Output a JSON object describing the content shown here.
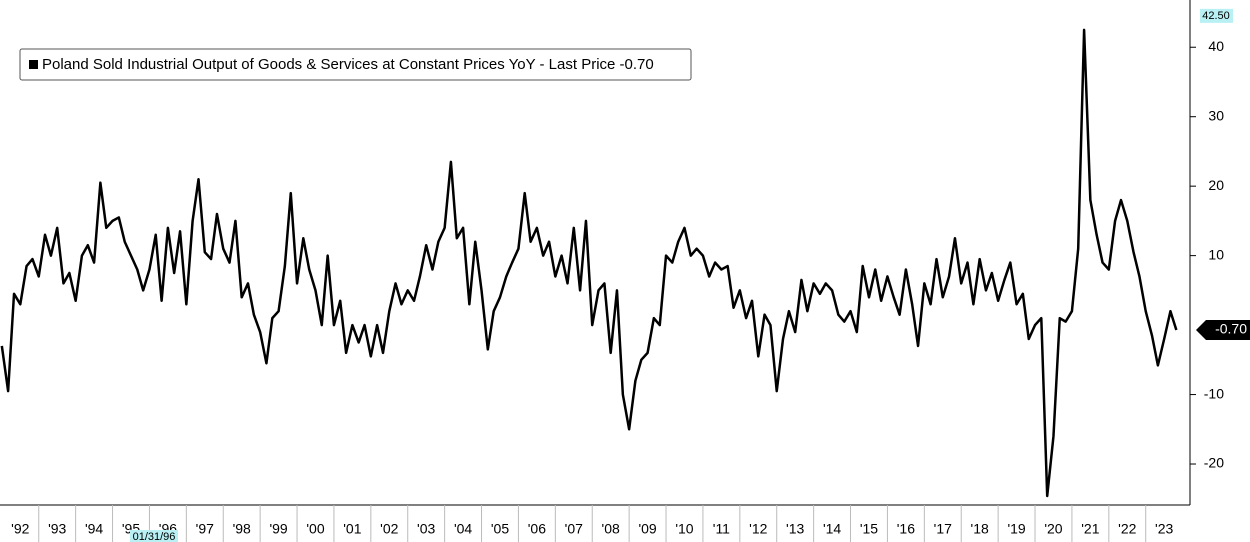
{
  "chart_data": {
    "type": "line",
    "x": [
      1992,
      1992.17,
      1992.33,
      1992.5,
      1992.67,
      1992.83,
      1993,
      1993.17,
      1993.33,
      1993.5,
      1993.67,
      1993.83,
      1994,
      1994.17,
      1994.33,
      1994.5,
      1994.67,
      1994.83,
      1995,
      1995.17,
      1995.33,
      1995.5,
      1995.67,
      1995.83,
      1996,
      1996.17,
      1996.33,
      1996.5,
      1996.67,
      1996.83,
      1997,
      1997.17,
      1997.33,
      1997.5,
      1997.67,
      1997.83,
      1998,
      1998.17,
      1998.33,
      1998.5,
      1998.67,
      1998.83,
      1999,
      1999.17,
      1999.33,
      1999.5,
      1999.67,
      1999.83,
      2000,
      2000.17,
      2000.33,
      2000.5,
      2000.67,
      2000.83,
      2001,
      2001.17,
      2001.33,
      2001.5,
      2001.67,
      2001.83,
      2002,
      2002.17,
      2002.33,
      2002.5,
      2002.67,
      2002.83,
      2003,
      2003.17,
      2003.33,
      2003.5,
      2003.67,
      2003.83,
      2004,
      2004.17,
      2004.33,
      2004.5,
      2004.67,
      2004.83,
      2005,
      2005.17,
      2005.33,
      2005.5,
      2005.67,
      2005.83,
      2006,
      2006.17,
      2006.33,
      2006.5,
      2006.67,
      2006.83,
      2007,
      2007.17,
      2007.33,
      2007.5,
      2007.67,
      2007.83,
      2008,
      2008.17,
      2008.33,
      2008.5,
      2008.67,
      2008.83,
      2009,
      2009.17,
      2009.33,
      2009.5,
      2009.67,
      2009.83,
      2010,
      2010.17,
      2010.33,
      2010.5,
      2010.67,
      2010.83,
      2011,
      2011.17,
      2011.33,
      2011.5,
      2011.67,
      2011.83,
      2012,
      2012.17,
      2012.33,
      2012.5,
      2012.67,
      2012.83,
      2013,
      2013.17,
      2013.33,
      2013.5,
      2013.67,
      2013.83,
      2014,
      2014.17,
      2014.33,
      2014.5,
      2014.67,
      2014.83,
      2015,
      2015.17,
      2015.33,
      2015.5,
      2015.67,
      2015.83,
      2016,
      2016.17,
      2016.33,
      2016.5,
      2016.67,
      2016.83,
      2017,
      2017.17,
      2017.33,
      2017.5,
      2017.67,
      2017.83,
      2018,
      2018.17,
      2018.33,
      2018.5,
      2018.67,
      2018.83,
      2019,
      2019.17,
      2019.33,
      2019.5,
      2019.67,
      2019.83,
      2020,
      2020.17,
      2020.33,
      2020.5,
      2020.67,
      2020.83,
      2021,
      2021.17,
      2021.33,
      2021.5,
      2021.67,
      2021.83,
      2022,
      2022.17,
      2022.33,
      2022.5,
      2022.67,
      2022.83,
      2023,
      2023.17,
      2023.33,
      2023.5,
      2023.67,
      2023.83
    ],
    "series": [
      {
        "name": "Poland Sold Industrial Output of Goods & Services at Constant Prices YoY - Last Price -0.70",
        "color": "#000000",
        "values": [
          -3,
          -9.5,
          4.5,
          3,
          8.5,
          9.5,
          7,
          13,
          10,
          14,
          6,
          7.5,
          3.5,
          10,
          11.5,
          9,
          20.5,
          14,
          15,
          15.5,
          12,
          10,
          8,
          5,
          8,
          13,
          3.5,
          14,
          7.5,
          13.5,
          3,
          15,
          21,
          10.5,
          9.5,
          16,
          11,
          9,
          15,
          4,
          6,
          1.5,
          -1,
          -5.5,
          1,
          2,
          8.5,
          19,
          6,
          12.5,
          8,
          5,
          0,
          10,
          0,
          3.5,
          -4,
          0,
          -2.5,
          0,
          -4.5,
          0,
          -4,
          2,
          6,
          3,
          5,
          3.5,
          7,
          11.5,
          8,
          12,
          14,
          23.5,
          12.5,
          14,
          3,
          12,
          5,
          -3.5,
          2,
          4,
          7,
          9,
          11,
          19,
          12,
          14,
          10,
          12,
          7,
          10,
          6,
          14,
          5,
          15,
          0,
          5,
          6,
          -4,
          5,
          -10,
          -15,
          -8,
          -5,
          -4,
          1,
          0,
          10,
          9,
          12,
          14,
          10,
          11,
          10,
          7,
          9,
          8,
          8.5,
          2.5,
          5,
          1,
          3.5,
          -4.5,
          1.5,
          0,
          -9.5,
          -2,
          2,
          -1,
          6.5,
          2,
          6,
          4.5,
          6,
          5,
          1.5,
          0.5,
          2,
          -1,
          8.5,
          4,
          8,
          3.5,
          7,
          4,
          1.5,
          8,
          3,
          -3,
          6,
          3,
          9.5,
          4,
          7,
          12.5,
          6,
          9,
          3,
          9.5,
          5,
          7.5,
          3.5,
          6.5,
          9,
          3,
          4.5,
          -2,
          0,
          1,
          -24.6,
          -16,
          1,
          0.5,
          2,
          11,
          42.5,
          18,
          13,
          9,
          8,
          15,
          18,
          15,
          10.5,
          7,
          2,
          -1.5,
          -5.8,
          -2,
          2,
          -0.7
        ]
      }
    ],
    "xlim": [
      1991.95,
      2024.2
    ],
    "xticks": [
      {
        "value": 1992,
        "label": "'92"
      },
      {
        "value": 1993,
        "label": "'93"
      },
      {
        "value": 1994,
        "label": "'94"
      },
      {
        "value": 1995,
        "label": "'95"
      },
      {
        "value": 1996,
        "label": "'96"
      },
      {
        "value": 1997,
        "label": "'97"
      },
      {
        "value": 1998,
        "label": "'98"
      },
      {
        "value": 1999,
        "label": "'99"
      },
      {
        "value": 2000,
        "label": "'00"
      },
      {
        "value": 2001,
        "label": "'01"
      },
      {
        "value": 2002,
        "label": "'02"
      },
      {
        "value": 2003,
        "label": "'03"
      },
      {
        "value": 2004,
        "label": "'04"
      },
      {
        "value": 2005,
        "label": "'05"
      },
      {
        "value": 2006,
        "label": "'06"
      },
      {
        "value": 2007,
        "label": "'07"
      },
      {
        "value": 2008,
        "label": "'08"
      },
      {
        "value": 2009,
        "label": "'09"
      },
      {
        "value": 2010,
        "label": "'10"
      },
      {
        "value": 2011,
        "label": "'11"
      },
      {
        "value": 2012,
        "label": "'12"
      },
      {
        "value": 2013,
        "label": "'13"
      },
      {
        "value": 2014,
        "label": "'14"
      },
      {
        "value": 2015,
        "label": "'15"
      },
      {
        "value": 2016,
        "label": "'16"
      },
      {
        "value": 2017,
        "label": "'17"
      },
      {
        "value": 2018,
        "label": "'18"
      },
      {
        "value": 2019,
        "label": "'19"
      },
      {
        "value": 2020,
        "label": "'20"
      },
      {
        "value": 2021,
        "label": "'21"
      },
      {
        "value": 2022,
        "label": "'22"
      },
      {
        "value": 2023,
        "label": "'23"
      }
    ],
    "ylim": [
      -25.9,
      46.8
    ],
    "yticks": [
      -20,
      -10,
      10,
      20,
      30,
      40
    ],
    "max_label": {
      "value": 42.5,
      "label": "42.50"
    },
    "last_label": {
      "value": -0.7,
      "label": "-0.70"
    },
    "cursor_label": "01/31/96",
    "legend": "top-left"
  }
}
